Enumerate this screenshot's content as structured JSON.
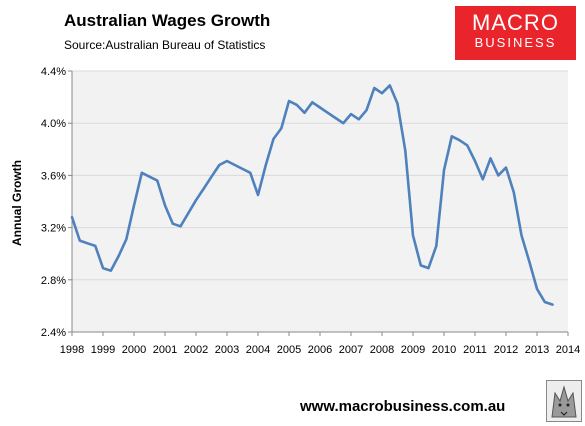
{
  "header": {
    "title": "Australian Wages Growth",
    "subtitle": "Source:Australian Bureau of Statistics"
  },
  "logo": {
    "line1": "MACRO",
    "line2": "BUSINESS",
    "color": "#e9252b"
  },
  "footer": {
    "url": "www.macrobusiness.com.au"
  },
  "chart_data": {
    "type": "line",
    "title": "Australian Wages Growth",
    "xlabel": "",
    "ylabel": "Annual Growth",
    "xlim": [
      1998,
      2014
    ],
    "ylim": [
      2.4,
      4.4
    ],
    "yticks": [
      "2.4%",
      "2.8%",
      "3.2%",
      "3.6%",
      "4.0%",
      "4.4%"
    ],
    "xticks": [
      "1998",
      "1999",
      "2000",
      "2001",
      "2002",
      "2003",
      "2004",
      "2005",
      "2006",
      "2007",
      "2008",
      "2009",
      "2010",
      "2011",
      "2012",
      "2013",
      "2014"
    ],
    "grid": true,
    "line_color": "#4f81bd",
    "plot_background": "#f2f2f2",
    "series": [
      {
        "x": [
          1998.0,
          1998.25,
          1998.5,
          1998.75,
          1999.0,
          1999.25,
          1999.5,
          1999.75,
          2000.0,
          2000.25,
          2000.5,
          2000.75,
          2001.0,
          2001.25,
          2001.5,
          2001.75,
          2002.0,
          2002.25,
          2002.5,
          2002.75,
          2003.0,
          2003.25,
          2003.5,
          2003.75,
          2004.0,
          2004.25,
          2004.5,
          2004.75,
          2005.0,
          2005.25,
          2005.5,
          2005.75,
          2006.0,
          2006.25,
          2006.5,
          2006.75,
          2007.0,
          2007.25,
          2007.5,
          2007.75,
          2008.0,
          2008.25,
          2008.5,
          2008.75,
          2009.0,
          2009.25,
          2009.5,
          2009.75,
          2010.0,
          2010.25,
          2010.5,
          2010.75,
          2011.0,
          2011.25,
          2011.5,
          2011.75,
          2012.0,
          2012.25,
          2012.5,
          2012.75,
          2013.0,
          2013.25,
          2013.5
        ],
        "values": [
          3.28,
          3.1,
          3.08,
          3.06,
          2.89,
          2.87,
          2.98,
          3.11,
          3.37,
          3.62,
          3.59,
          3.56,
          3.37,
          3.23,
          3.21,
          3.31,
          3.41,
          3.5,
          3.59,
          3.68,
          3.71,
          3.68,
          3.65,
          3.62,
          3.45,
          3.68,
          3.88,
          3.96,
          4.17,
          4.14,
          4.08,
          4.16,
          4.12,
          4.08,
          4.04,
          4.0,
          4.07,
          4.03,
          4.1,
          4.27,
          4.23,
          4.29,
          4.15,
          3.79,
          3.14,
          2.91,
          2.89,
          3.06,
          3.64,
          3.9,
          3.87,
          3.83,
          3.71,
          3.57,
          3.73,
          3.6,
          3.66,
          3.47,
          3.14,
          2.94,
          2.73,
          2.63,
          2.61
        ]
      }
    ],
    "watermark_url": "www.macrobusiness.com.au"
  }
}
